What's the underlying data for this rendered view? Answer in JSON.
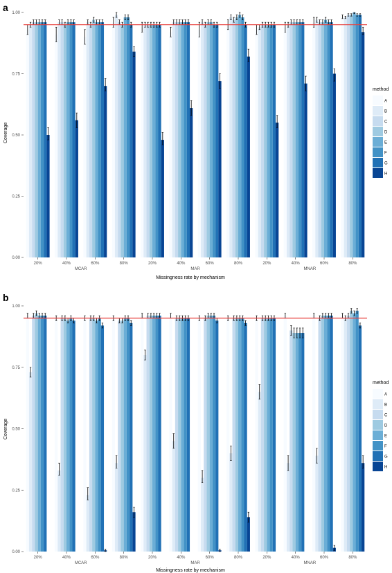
{
  "colors": {
    "reference_line": "#e8423f",
    "error_bar": "#000000",
    "method_colors": [
      "#f7fbff",
      "#deebf7",
      "#c6dbef",
      "#9ecae1",
      "#6baed6",
      "#4292c6",
      "#2171b5",
      "#084594"
    ]
  },
  "chart_data": [
    {
      "panel_label": "a",
      "type": "bar",
      "ylabel": "Coverage",
      "xlabel": "Missingness rate by mechanism",
      "ylim": [
        0,
        1
      ],
      "yticks": [
        "0.00",
        "0.25",
        "0.50",
        "0.75",
        "1.00"
      ],
      "reference_line": 0.95,
      "grid": false,
      "legend": {
        "title": "method",
        "position": "right",
        "entries": [
          "A",
          "B",
          "C",
          "D",
          "E",
          "F",
          "G",
          "H"
        ]
      },
      "groups": [
        "MCAR",
        "MAR",
        "MNAR"
      ],
      "categories": [
        "20%",
        "40%",
        "60%",
        "80%",
        "20%",
        "40%",
        "60%",
        "80%",
        "20%",
        "40%",
        "60%",
        "80%"
      ],
      "category_group": [
        "MCAR",
        "MCAR",
        "MCAR",
        "MCAR",
        "MAR",
        "MAR",
        "MAR",
        "MAR",
        "MNAR",
        "MNAR",
        "MNAR",
        "MNAR"
      ],
      "series": [
        {
          "name": "A",
          "values": [
            0.93,
            0.91,
            0.9,
            0.96,
            0.94,
            0.92,
            0.93,
            0.95,
            0.93,
            0.94,
            0.96,
            0.98
          ],
          "lower": [
            0.91,
            0.88,
            0.87,
            0.94,
            0.92,
            0.9,
            0.9,
            0.93,
            0.91,
            0.92,
            0.94,
            0.975
          ],
          "upper": [
            0.95,
            0.94,
            0.93,
            0.98,
            0.96,
            0.94,
            0.96,
            0.97,
            0.95,
            0.96,
            0.98,
            0.99
          ]
        },
        {
          "name": "B",
          "values": [
            0.95,
            0.96,
            0.96,
            0.99,
            0.95,
            0.96,
            0.96,
            0.98,
            0.94,
            0.95,
            0.97,
            0.98
          ],
          "lower": [
            0.94,
            0.95,
            0.95,
            0.98,
            0.94,
            0.95,
            0.95,
            0.97,
            0.93,
            0.94,
            0.96,
            0.975
          ],
          "upper": [
            0.96,
            0.97,
            0.97,
            1.0,
            0.96,
            0.97,
            0.97,
            0.99,
            0.95,
            0.96,
            0.98,
            0.985
          ]
        },
        {
          "name": "C",
          "values": [
            0.96,
            0.96,
            0.95,
            0.96,
            0.95,
            0.96,
            0.95,
            0.97,
            0.95,
            0.96,
            0.96,
            0.99
          ],
          "lower": [
            0.95,
            0.95,
            0.94,
            0.95,
            0.94,
            0.95,
            0.94,
            0.96,
            0.94,
            0.95,
            0.95,
            0.985
          ],
          "upper": [
            0.97,
            0.97,
            0.96,
            0.97,
            0.96,
            0.97,
            0.96,
            0.98,
            0.96,
            0.97,
            0.97,
            0.995
          ]
        },
        {
          "name": "D",
          "values": [
            0.96,
            0.95,
            0.97,
            0.95,
            0.95,
            0.96,
            0.96,
            0.98,
            0.95,
            0.96,
            0.96,
            0.99
          ],
          "lower": [
            0.95,
            0.94,
            0.96,
            0.94,
            0.94,
            0.95,
            0.95,
            0.97,
            0.94,
            0.95,
            0.95,
            0.985
          ],
          "upper": [
            0.97,
            0.96,
            0.98,
            0.96,
            0.96,
            0.97,
            0.97,
            0.99,
            0.96,
            0.97,
            0.97,
            0.995
          ]
        },
        {
          "name": "E",
          "values": [
            0.96,
            0.96,
            0.96,
            0.98,
            0.95,
            0.96,
            0.96,
            0.99,
            0.95,
            0.96,
            0.97,
            1.0
          ],
          "lower": [
            0.95,
            0.95,
            0.95,
            0.97,
            0.94,
            0.95,
            0.95,
            0.98,
            0.94,
            0.95,
            0.96,
            0.995
          ],
          "upper": [
            0.97,
            0.97,
            0.97,
            0.99,
            0.96,
            0.97,
            0.97,
            1.0,
            0.96,
            0.97,
            0.98,
            1.0
          ]
        },
        {
          "name": "F",
          "values": [
            0.96,
            0.96,
            0.96,
            0.98,
            0.95,
            0.96,
            0.95,
            0.98,
            0.95,
            0.96,
            0.96,
            0.99
          ],
          "lower": [
            0.95,
            0.95,
            0.95,
            0.97,
            0.94,
            0.95,
            0.94,
            0.97,
            0.94,
            0.95,
            0.95,
            0.985
          ],
          "upper": [
            0.97,
            0.97,
            0.97,
            0.99,
            0.96,
            0.97,
            0.96,
            0.99,
            0.96,
            0.97,
            0.97,
            0.995
          ]
        },
        {
          "name": "G",
          "values": [
            0.96,
            0.96,
            0.96,
            0.95,
            0.95,
            0.96,
            0.95,
            0.95,
            0.95,
            0.96,
            0.96,
            0.99
          ],
          "lower": [
            0.95,
            0.95,
            0.95,
            0.94,
            0.94,
            0.95,
            0.94,
            0.94,
            0.94,
            0.95,
            0.95,
            0.985
          ],
          "upper": [
            0.97,
            0.97,
            0.97,
            0.96,
            0.96,
            0.97,
            0.96,
            0.96,
            0.96,
            0.97,
            0.97,
            0.995
          ]
        },
        {
          "name": "H",
          "values": [
            0.5,
            0.56,
            0.7,
            0.84,
            0.48,
            0.61,
            0.72,
            0.82,
            0.55,
            0.71,
            0.75,
            0.92
          ],
          "lower": [
            0.48,
            0.53,
            0.68,
            0.82,
            0.46,
            0.58,
            0.69,
            0.8,
            0.53,
            0.68,
            0.72,
            0.91
          ],
          "upper": [
            0.53,
            0.59,
            0.73,
            0.86,
            0.51,
            0.64,
            0.75,
            0.85,
            0.58,
            0.74,
            0.77,
            0.94
          ]
        }
      ]
    },
    {
      "panel_label": "b",
      "type": "bar",
      "ylabel": "Coverage",
      "xlabel": "Missingness rate by mechanism",
      "ylim": [
        0,
        1
      ],
      "yticks": [
        "0.00",
        "0.25",
        "0.50",
        "0.75",
        "1.00"
      ],
      "reference_line": 0.95,
      "grid": false,
      "legend": {
        "title": "method",
        "position": "right",
        "entries": [
          "A",
          "B",
          "C",
          "D",
          "E",
          "F",
          "G",
          "H"
        ]
      },
      "groups": [
        "MCAR",
        "MAR",
        "MNAR"
      ],
      "categories": [
        "20%",
        "40%",
        "60%",
        "80%",
        "20%",
        "40%",
        "60%",
        "80%",
        "20%",
        "40%",
        "60%",
        "80%"
      ],
      "category_group": [
        "MCAR",
        "MCAR",
        "MCAR",
        "MCAR",
        "MAR",
        "MAR",
        "MAR",
        "MAR",
        "MNAR",
        "MNAR",
        "MNAR",
        "MNAR"
      ],
      "series": [
        {
          "name": "A",
          "values": [
            0.96,
            0.95,
            0.95,
            0.95,
            0.96,
            0.96,
            0.95,
            0.95,
            0.95,
            0.96,
            0.96,
            0.96
          ],
          "lower": [
            0.95,
            0.94,
            0.94,
            0.94,
            0.95,
            0.95,
            0.94,
            0.94,
            0.94,
            0.95,
            0.95,
            0.95
          ],
          "upper": [
            0.97,
            0.96,
            0.96,
            0.96,
            0.97,
            0.97,
            0.96,
            0.96,
            0.96,
            0.97,
            0.97,
            0.97
          ]
        },
        {
          "name": "B",
          "values": [
            0.73,
            0.33,
            0.23,
            0.36,
            0.8,
            0.45,
            0.3,
            0.4,
            0.65,
            0.36,
            0.39,
            0.95
          ],
          "lower": [
            0.71,
            0.31,
            0.21,
            0.34,
            0.78,
            0.42,
            0.28,
            0.37,
            0.62,
            0.33,
            0.36,
            0.94
          ],
          "upper": [
            0.75,
            0.36,
            0.26,
            0.39,
            0.82,
            0.48,
            0.33,
            0.43,
            0.68,
            0.39,
            0.42,
            0.96
          ]
        },
        {
          "name": "C",
          "values": [
            0.96,
            0.95,
            0.95,
            0.94,
            0.96,
            0.95,
            0.95,
            0.95,
            0.95,
            0.9,
            0.95,
            0.96
          ],
          "lower": [
            0.95,
            0.94,
            0.94,
            0.93,
            0.95,
            0.94,
            0.94,
            0.94,
            0.94,
            0.88,
            0.94,
            0.95
          ],
          "upper": [
            0.97,
            0.96,
            0.96,
            0.95,
            0.97,
            0.96,
            0.96,
            0.96,
            0.96,
            0.92,
            0.96,
            0.97
          ]
        },
        {
          "name": "D",
          "values": [
            0.97,
            0.95,
            0.95,
            0.94,
            0.96,
            0.95,
            0.96,
            0.95,
            0.95,
            0.89,
            0.96,
            0.98
          ],
          "lower": [
            0.96,
            0.94,
            0.94,
            0.93,
            0.95,
            0.94,
            0.95,
            0.94,
            0.94,
            0.87,
            0.95,
            0.97
          ],
          "upper": [
            0.98,
            0.96,
            0.96,
            0.95,
            0.97,
            0.96,
            0.97,
            0.96,
            0.96,
            0.91,
            0.97,
            0.99
          ]
        },
        {
          "name": "E",
          "values": [
            0.96,
            0.94,
            0.94,
            0.95,
            0.96,
            0.95,
            0.96,
            0.95,
            0.95,
            0.89,
            0.96,
            0.97
          ],
          "lower": [
            0.95,
            0.93,
            0.93,
            0.94,
            0.95,
            0.94,
            0.95,
            0.94,
            0.94,
            0.87,
            0.95,
            0.96
          ],
          "upper": [
            0.97,
            0.95,
            0.95,
            0.96,
            0.97,
            0.96,
            0.97,
            0.96,
            0.96,
            0.91,
            0.97,
            0.98
          ]
        },
        {
          "name": "F",
          "values": [
            0.96,
            0.95,
            0.95,
            0.95,
            0.96,
            0.95,
            0.96,
            0.95,
            0.95,
            0.89,
            0.96,
            0.98
          ],
          "lower": [
            0.95,
            0.94,
            0.94,
            0.94,
            0.95,
            0.94,
            0.95,
            0.94,
            0.94,
            0.87,
            0.95,
            0.97
          ],
          "upper": [
            0.97,
            0.96,
            0.96,
            0.96,
            0.97,
            0.96,
            0.97,
            0.96,
            0.96,
            0.91,
            0.97,
            0.99
          ]
        },
        {
          "name": "G",
          "values": [
            0.96,
            0.94,
            0.92,
            0.93,
            0.96,
            0.95,
            0.94,
            0.93,
            0.95,
            0.89,
            0.96,
            0.92
          ],
          "lower": [
            0.95,
            0.93,
            0.91,
            0.92,
            0.95,
            0.94,
            0.93,
            0.92,
            0.94,
            0.87,
            0.95,
            0.91
          ],
          "upper": [
            0.97,
            0.95,
            0.93,
            0.94,
            0.97,
            0.96,
            0.95,
            0.94,
            0.96,
            0.91,
            0.97,
            0.93
          ]
        },
        {
          "name": "H",
          "values": [
            0.0,
            0.0,
            0.005,
            0.16,
            0.0,
            0.0,
            0.005,
            0.14,
            0.0,
            0.0,
            0.015,
            0.36
          ],
          "lower": [
            0.0,
            0.0,
            0.0,
            0.14,
            0.0,
            0.0,
            0.0,
            0.12,
            0.0,
            0.0,
            0.005,
            0.34
          ],
          "upper": [
            0.0,
            0.0,
            0.01,
            0.18,
            0.0,
            0.0,
            0.01,
            0.16,
            0.0,
            0.0,
            0.025,
            0.39
          ]
        }
      ]
    }
  ]
}
